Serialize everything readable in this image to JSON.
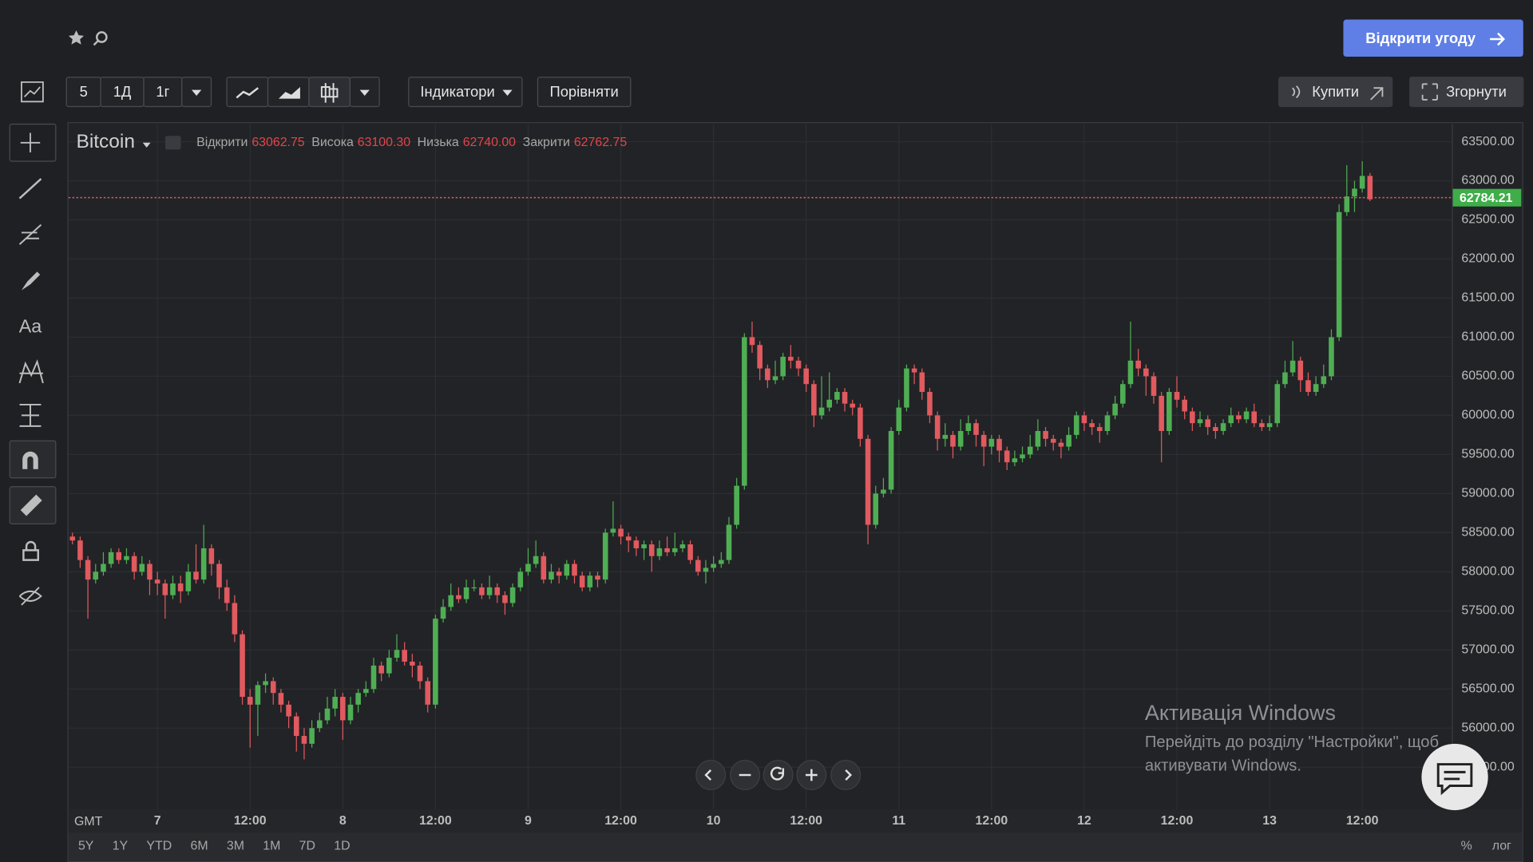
{
  "header": {
    "open_trade": "Відкрити угоду"
  },
  "toolbar": {
    "intervals": [
      "5",
      "1Д",
      "1г"
    ],
    "indicators": "Індикатори",
    "compare": "Порівняти",
    "buy": "Купити",
    "collapse": "Згорнути"
  },
  "sidebar": {
    "text_tool": "Aa"
  },
  "chart_data": {
    "type": "candlestick",
    "symbol": "Bitcoin",
    "ohlc_legend": [
      {
        "name": "Відкрити",
        "value_label": "63062.75"
      },
      {
        "name": "Висока",
        "value_label": "63100.30"
      },
      {
        "name": "Низька",
        "value_label": "62740.00"
      },
      {
        "name": "Закрити",
        "value_label": "62762.75"
      }
    ],
    "up_color": "#4fae54",
    "down_color": "#e05a5f",
    "current_price": 62784.21,
    "current_price_color": "#3fae49",
    "timezone": "GMT",
    "x": [
      -11,
      -10,
      -9,
      -8,
      -7,
      -6,
      -5,
      -4,
      -3,
      -2,
      -1,
      0,
      1,
      2,
      3,
      4,
      5,
      6,
      7,
      8,
      9,
      10,
      11,
      12,
      13,
      14,
      15,
      16,
      17,
      18,
      19,
      20,
      21,
      22,
      23,
      24,
      25,
      26,
      27,
      28,
      29,
      30,
      31,
      32,
      33,
      34,
      35,
      36,
      37,
      38,
      39,
      40,
      41,
      42,
      43,
      44,
      45,
      46,
      47,
      48,
      49,
      50,
      51,
      52,
      53,
      54,
      55,
      56,
      57,
      58,
      59,
      60,
      61,
      62,
      63,
      64,
      65,
      66,
      67,
      68,
      69,
      70,
      71,
      72,
      73,
      74,
      75,
      76,
      77,
      78,
      79,
      80,
      81,
      82,
      83,
      84,
      85,
      86,
      87,
      88,
      89,
      90,
      91,
      92,
      93,
      94,
      95,
      96,
      97,
      98,
      99,
      100,
      101,
      102,
      103,
      104,
      105,
      106,
      107,
      108,
      109,
      110,
      111,
      112,
      113,
      114,
      115,
      116,
      117,
      118,
      119,
      120,
      121,
      122,
      123,
      124,
      125,
      126,
      127,
      128,
      129,
      130,
      131,
      132,
      133,
      134,
      135,
      136,
      137,
      138,
      139,
      140,
      141,
      142,
      143,
      144,
      145,
      146,
      147,
      148,
      149,
      150,
      151,
      152,
      153,
      154,
      155,
      156,
      157
    ],
    "open": [
      58450,
      58400,
      58150,
      57900,
      58000,
      58100,
      58250,
      58150,
      58200,
      58000,
      58100,
      57900,
      57850,
      57700,
      57850,
      57750,
      58000,
      57900,
      58300,
      58100,
      57800,
      57600,
      57200,
      56400,
      56300,
      56550,
      56600,
      56450,
      56300,
      56150,
      55900,
      55800,
      56000,
      56100,
      56250,
      56400,
      56100,
      56300,
      56450,
      56500,
      56800,
      56700,
      56900,
      57000,
      56850,
      56800,
      56600,
      56300,
      57400,
      57550,
      57700,
      57650,
      57800,
      57800,
      57700,
      57800,
      57700,
      57600,
      57800,
      58000,
      58100,
      58200,
      57900,
      58000,
      57950,
      58100,
      57950,
      57800,
      57950,
      57900,
      58500,
      58550,
      58450,
      58400,
      58300,
      58350,
      58200,
      58300,
      58250,
      58300,
      58350,
      58150,
      58000,
      58050,
      58100,
      58150,
      58600,
      59100,
      61000,
      60900,
      60600,
      60450,
      60500,
      60750,
      60700,
      60600,
      60400,
      60000,
      60100,
      60200,
      60300,
      60150,
      60100,
      59700,
      58600,
      59000,
      59050,
      59800,
      60100,
      60600,
      60550,
      60300,
      60000,
      59700,
      59750,
      59600,
      59800,
      59900,
      59750,
      59600,
      59700,
      59550,
      59400,
      59450,
      59500,
      59600,
      59800,
      59700,
      59650,
      59600,
      59750,
      60000,
      59900,
      59850,
      59800,
      60000,
      60150,
      60400,
      60700,
      60600,
      60500,
      60250,
      59800,
      60300,
      60200,
      60050,
      59900,
      59950,
      59850,
      59800,
      59900,
      60000,
      59950,
      60050,
      59900,
      59850,
      59900,
      60400,
      60550,
      60700,
      60450,
      60300,
      60400,
      60500,
      61000,
      62600,
      62800,
      62900,
      63062.75
    ],
    "high": [
      58500,
      58450,
      58200,
      58100,
      58250,
      58300,
      58300,
      58300,
      58250,
      58200,
      58150,
      58000,
      57900,
      57950,
      57950,
      58100,
      58350,
      58600,
      58350,
      58150,
      57900,
      57700,
      57250,
      56500,
      56600,
      56700,
      56650,
      56500,
      56350,
      56200,
      56000,
      56100,
      56200,
      56400,
      56500,
      56450,
      56400,
      56500,
      56600,
      56900,
      56850,
      57000,
      57200,
      57100,
      56950,
      56850,
      56650,
      57450,
      57650,
      57850,
      57800,
      57900,
      57900,
      57850,
      57950,
      57850,
      57750,
      57850,
      58050,
      58300,
      58400,
      58250,
      58100,
      58050,
      58150,
      58150,
      58000,
      58000,
      58000,
      58550,
      58900,
      58600,
      58500,
      58450,
      58400,
      58400,
      58400,
      58450,
      58500,
      58400,
      58400,
      58200,
      58150,
      58200,
      58250,
      58700,
      59200,
      61050,
      61200,
      60950,
      60650,
      60700,
      60800,
      60900,
      60750,
      60650,
      60450,
      60500,
      60550,
      60350,
      60350,
      60200,
      60150,
      59750,
      59100,
      59200,
      59850,
      60200,
      60650,
      60650,
      60600,
      60350,
      60050,
      59900,
      59800,
      59950,
      60000,
      59950,
      59800,
      59750,
      59750,
      59600,
      59550,
      59600,
      59750,
      59950,
      59850,
      59750,
      59700,
      59850,
      60050,
      60050,
      59950,
      59900,
      60050,
      60250,
      60450,
      61200,
      60850,
      60650,
      60550,
      60300,
      60350,
      60500,
      60250,
      60100,
      60050,
      60000,
      59900,
      59950,
      60100,
      60050,
      60100,
      60150,
      59950,
      60000,
      60450,
      60700,
      60950,
      60750,
      60550,
      60500,
      60650,
      61100,
      62700,
      63200,
      63000,
      63250,
      63100.3
    ],
    "low": [
      58350,
      58050,
      57400,
      57850,
      57950,
      58050,
      58100,
      58100,
      57900,
      57950,
      57700,
      57700,
      57400,
      57650,
      57600,
      57700,
      57850,
      57850,
      57950,
      57650,
      57500,
      57100,
      56300,
      55750,
      55900,
      56450,
      56300,
      56200,
      56000,
      55700,
      55600,
      55750,
      55950,
      56050,
      56150,
      55850,
      56050,
      56200,
      56400,
      56450,
      56600,
      56650,
      56850,
      56800,
      56650,
      56500,
      56200,
      56250,
      57350,
      57500,
      57600,
      57600,
      57750,
      57650,
      57650,
      57600,
      57450,
      57550,
      57750,
      57950,
      58050,
      57850,
      57850,
      57850,
      57900,
      57850,
      57750,
      57750,
      57800,
      57850,
      58450,
      58350,
      58250,
      58200,
      58150,
      58000,
      58150,
      58200,
      58200,
      58250,
      58100,
      57950,
      57850,
      58000,
      58050,
      58100,
      58550,
      59050,
      60800,
      60450,
      60350,
      60400,
      60450,
      60600,
      60500,
      60300,
      59850,
      59950,
      60050,
      60150,
      60050,
      60000,
      59600,
      58350,
      58550,
      58950,
      59000,
      59750,
      60050,
      60400,
      60200,
      59900,
      59550,
      59600,
      59450,
      59550,
      59750,
      59600,
      59350,
      59500,
      59400,
      59300,
      59350,
      59400,
      59450,
      59550,
      59600,
      59550,
      59450,
      59550,
      59700,
      59800,
      59750,
      59650,
      59750,
      59950,
      60100,
      60350,
      60500,
      60250,
      60150,
      59400,
      59750,
      60100,
      59950,
      59800,
      59850,
      59750,
      59700,
      59750,
      59850,
      59900,
      59900,
      59850,
      59800,
      59800,
      59850,
      60350,
      60500,
      60300,
      60250,
      60250,
      60350,
      60450,
      60950,
      62550,
      62600,
      62850,
      62740
    ],
    "close": [
      58400,
      58150,
      57900,
      58000,
      58100,
      58250,
      58150,
      58200,
      58000,
      58100,
      57900,
      57850,
      57700,
      57850,
      57750,
      58000,
      57900,
      58300,
      58100,
      57800,
      57600,
      57200,
      56400,
      56300,
      56550,
      56600,
      56450,
      56300,
      56150,
      55900,
      55800,
      56000,
      56100,
      56250,
      56400,
      56100,
      56300,
      56450,
      56500,
      56800,
      56700,
      56900,
      57000,
      56850,
      56800,
      56600,
      56300,
      57400,
      57550,
      57700,
      57650,
      57800,
      57800,
      57700,
      57800,
      57700,
      57600,
      57800,
      58000,
      58100,
      58200,
      57900,
      58000,
      57950,
      58100,
      57950,
      57800,
      57950,
      57900,
      58500,
      58550,
      58450,
      58400,
      58300,
      58350,
      58200,
      58300,
      58250,
      58300,
      58350,
      58150,
      58000,
      58050,
      58100,
      58150,
      58600,
      59100,
      61000,
      60900,
      60600,
      60450,
      60500,
      60750,
      60700,
      60600,
      60400,
      60000,
      60100,
      60200,
      60300,
      60150,
      60100,
      59700,
      58600,
      59000,
      59050,
      59800,
      60100,
      60600,
      60550,
      60300,
      60000,
      59700,
      59750,
      59600,
      59800,
      59900,
      59750,
      59600,
      59700,
      59550,
      59400,
      59450,
      59500,
      59600,
      59800,
      59700,
      59650,
      59600,
      59750,
      60000,
      59900,
      59850,
      59800,
      60000,
      60150,
      60400,
      60700,
      60600,
      60500,
      60250,
      59800,
      60300,
      60200,
      60050,
      59900,
      59950,
      59850,
      59800,
      59900,
      60000,
      59950,
      60050,
      59900,
      59850,
      59900,
      60400,
      60550,
      60700,
      60450,
      60300,
      60400,
      60500,
      61000,
      62600,
      62800,
      62900,
      63062.75,
      62762.75
    ],
    "xlim": [
      -11.52,
      167.6
    ],
    "xticks": [
      {
        "value": 0,
        "label": "7"
      },
      {
        "value": 12,
        "label": "12:00"
      },
      {
        "value": 24,
        "label": "8"
      },
      {
        "value": 36,
        "label": "12:00"
      },
      {
        "value": 48,
        "label": "9"
      },
      {
        "value": 60,
        "label": "12:00"
      },
      {
        "value": 72,
        "label": "10"
      },
      {
        "value": 84,
        "label": "12:00"
      },
      {
        "value": 96,
        "label": "11"
      },
      {
        "value": 108,
        "label": "12:00"
      },
      {
        "value": 120,
        "label": "12"
      },
      {
        "value": 132,
        "label": "12:00"
      },
      {
        "value": 144,
        "label": "13"
      },
      {
        "value": 156,
        "label": "12:00"
      }
    ],
    "ylim": [
      54962.5,
      63725
    ],
    "yticks": [
      {
        "value": 55500,
        "label": "55500.00"
      },
      {
        "value": 56000,
        "label": "56000.00"
      },
      {
        "value": 56500,
        "label": "56500.00"
      },
      {
        "value": 57000,
        "label": "57000.00"
      },
      {
        "value": 57500,
        "label": "57500.00"
      },
      {
        "value": 58000,
        "label": "58000.00"
      },
      {
        "value": 58500,
        "label": "58500.00"
      },
      {
        "value": 59000,
        "label": "59000.00"
      },
      {
        "value": 59500,
        "label": "59500.00"
      },
      {
        "value": 60000,
        "label": "60000.00"
      },
      {
        "value": 60500,
        "label": "60500.00"
      },
      {
        "value": 61000,
        "label": "61000.00"
      },
      {
        "value": 61500,
        "label": "61500.00"
      },
      {
        "value": 62000,
        "label": "62000.00"
      },
      {
        "value": 62500,
        "label": "62500.00"
      },
      {
        "value": 63000,
        "label": "63000.00"
      },
      {
        "value": 63500,
        "label": "63500.00"
      }
    ],
    "grid": true
  },
  "range_buttons": [
    "5Y",
    "1Y",
    "YTD",
    "6M",
    "3M",
    "1M",
    "7D",
    "1D"
  ],
  "scale_options": [
    "%",
    "лог"
  ],
  "watermark": {
    "title": "Активація Windows",
    "lines": [
      "Перейдіть до розділу \"Настройки\", щоб",
      "активувати Windows."
    ]
  }
}
